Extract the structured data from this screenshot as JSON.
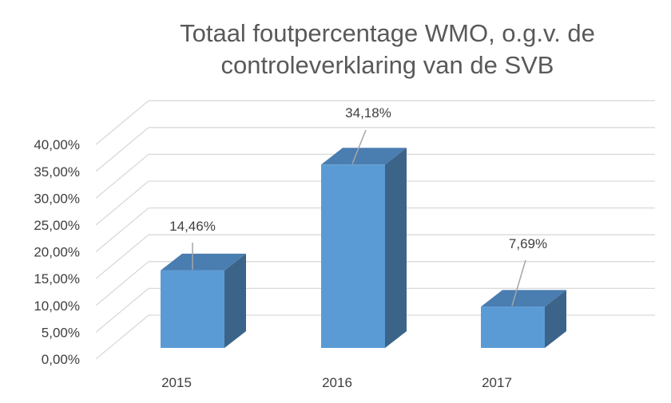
{
  "chart_data": {
    "type": "bar",
    "title": "Totaal foutpercentage WMO, o.g.v. de controleverklaring van de SVB",
    "title_lines": [
      "Totaal foutpercentage WMO, o.g.v. de",
      "controleverklaring van de SVB"
    ],
    "categories": [
      "2015",
      "2016",
      "2017"
    ],
    "values": [
      14.46,
      34.18,
      7.69
    ],
    "data_labels": [
      "14,46%",
      "34,18%",
      "7,69%"
    ],
    "ylim": [
      0,
      40
    ],
    "yticks": [
      0,
      5,
      10,
      15,
      20,
      25,
      30,
      35,
      40
    ],
    "ytick_labels": [
      "0,00%",
      "5,00%",
      "10,00%",
      "15,00%",
      "20,00%",
      "25,00%",
      "30,00%",
      "35,00%",
      "40,00%"
    ],
    "xlabel": "",
    "ylabel": "",
    "grid": true,
    "legend": "none",
    "style": "3d-column",
    "colors": {
      "bar_front": "#5b9bd5",
      "bar_side": "#3c6489",
      "bar_top": "#4a7db0",
      "grid": "#d9d9d9"
    }
  }
}
